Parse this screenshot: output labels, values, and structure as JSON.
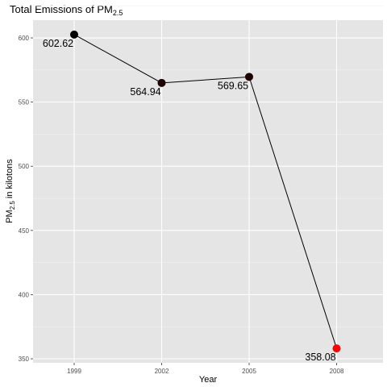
{
  "chart_data": {
    "type": "line",
    "title_main": "Total Emissions of PM",
    "title_sub": "2.5",
    "xlabel": "Year",
    "ylabel_main": "PM",
    "ylabel_sub": "2.5",
    "ylabel_tail": " in kilotons",
    "x": [
      "1999",
      "2002",
      "2005",
      "2008"
    ],
    "values": [
      602.62,
      564.94,
      569.65,
      358.08
    ],
    "labels": [
      "602.62",
      "564.94",
      "569.65",
      "358.08"
    ],
    "point_colors": [
      "#000000",
      "#1f0000",
      "#1f0000",
      "#ff0000"
    ],
    "yticks": [
      350,
      400,
      450,
      500,
      550,
      600
    ],
    "ylim": [
      346.86,
      613.84
    ],
    "grid": true,
    "panel_color": "#e5e5e5",
    "line_color": "#000000"
  }
}
